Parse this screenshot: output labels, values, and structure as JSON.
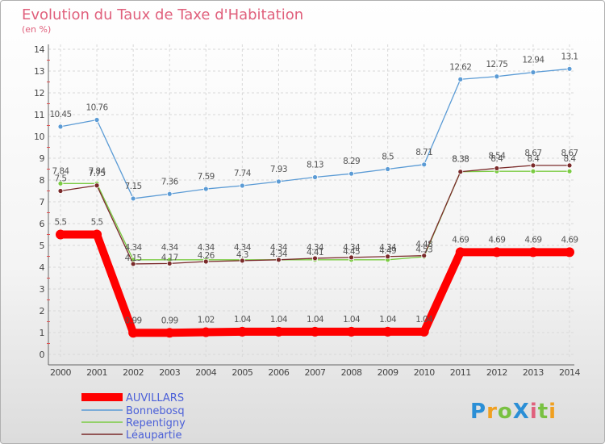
{
  "chart_data": {
    "type": "line",
    "title": "Evolution du Taux de Taxe d'Habitation",
    "subtitle": "(en %)",
    "x": [
      "2000",
      "2001",
      "2002",
      "2003",
      "2004",
      "2005",
      "2006",
      "2007",
      "2008",
      "2009",
      "2010",
      "2011",
      "2012",
      "2013",
      "2014"
    ],
    "yticks": [
      "0",
      "1",
      "2",
      "3",
      "4",
      "5",
      "6",
      "7",
      "8",
      "9",
      "10",
      "11",
      "12",
      "13",
      "14"
    ],
    "ylim": [
      0,
      14
    ],
    "grid": true,
    "legend_position": "bottom-left",
    "series": [
      {
        "name": "AUVILLARS",
        "color": "#ff0000",
        "values": [
          5.5,
          5.5,
          0.99,
          0.99,
          1.02,
          1.04,
          1.04,
          1.04,
          1.04,
          1.04,
          1.04,
          4.69,
          4.69,
          4.69,
          4.69
        ],
        "labels": [
          "5.5",
          "5.5",
          "0.99",
          "0.99",
          "1.02",
          "1.04",
          "1.04",
          "1.04",
          "1.04",
          "1.04",
          "1.04",
          "4.69",
          "4.69",
          "4.69",
          "4.69"
        ]
      },
      {
        "name": "Bonnebosq",
        "color": "#5b9bd5",
        "values": [
          10.45,
          10.76,
          7.15,
          7.36,
          7.59,
          7.74,
          7.93,
          8.13,
          8.29,
          8.5,
          8.71,
          12.62,
          12.75,
          12.94,
          13.1
        ],
        "labels": [
          "10.45",
          "10.76",
          "7.15",
          "7.36",
          "7.59",
          "7.74",
          "7.93",
          "8.13",
          "8.29",
          "8.5",
          "8.71",
          "12.62",
          "12.75",
          "12.94",
          "13.1"
        ]
      },
      {
        "name": "Repentigny",
        "color": "#7acb42",
        "values": [
          7.84,
          7.84,
          4.34,
          4.34,
          4.34,
          4.34,
          4.34,
          4.34,
          4.34,
          4.34,
          4.48,
          8.38,
          8.4,
          8.4,
          8.4
        ],
        "labels": [
          "7.84",
          "7.84",
          "4.34",
          "4.34",
          "4.34",
          "4.34",
          "4.34",
          "4.34",
          "4.34",
          "4.34",
          "4.48",
          "8.38",
          "8.4",
          "8.4",
          "8.4"
        ]
      },
      {
        "name": "Léaupartie",
        "color": "#7a2a2a",
        "values": [
          7.5,
          7.75,
          4.15,
          4.17,
          4.26,
          4.3,
          4.34,
          4.41,
          4.45,
          4.49,
          4.53,
          8.38,
          8.54,
          8.67,
          8.67
        ],
        "labels": [
          "7.5",
          "7.75",
          "4.15",
          "4.17",
          "4.26",
          "4.3",
          "4.34",
          "4.41",
          "4.45",
          "4.49",
          "4.53",
          "8.38",
          "8.54",
          "8.67",
          "8.67"
        ]
      }
    ]
  },
  "legend": {
    "items": [
      "AUVILLARS",
      "Bonnebosq",
      "Repentigny",
      "Léaupartie"
    ]
  },
  "brand": {
    "logo_text": "ProXiti"
  }
}
